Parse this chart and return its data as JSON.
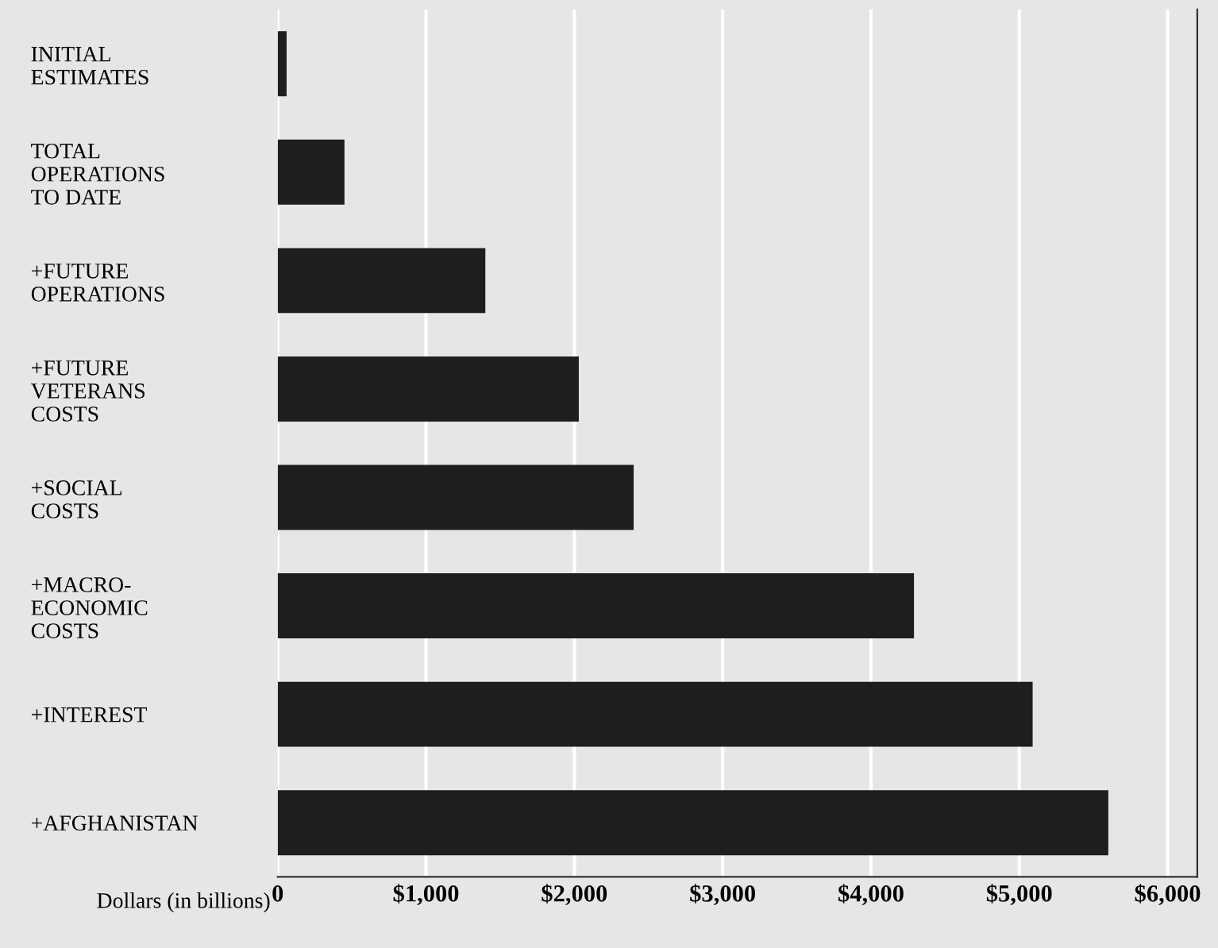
{
  "chart_data": {
    "type": "bar",
    "orientation": "horizontal",
    "xlabel": "Dollars (in billions)",
    "categories": [
      "INITIAL\nESTIMATES",
      "TOTAL\nOPERATIONS\nTO DATE",
      "+FUTURE\nOPERATIONS",
      "+FUTURE\nVETERANS\nCOSTS",
      "+SOCIAL\nCOSTS",
      "+MACRO-\nECONOMIC\nCOSTS",
      "+INTEREST",
      "+AFGHANISTAN"
    ],
    "values": [
      60,
      450,
      1400,
      2030,
      2400,
      4290,
      5090,
      5600
    ],
    "color": "#1e1e1e",
    "xlim": [
      0,
      6200
    ],
    "xticks": [
      0,
      {
        "value": 1000,
        "label": "$1,000"
      },
      {
        "value": 2000,
        "label": "$2,000"
      },
      {
        "value": 3000,
        "label": "$3,000"
      },
      {
        "value": 4000,
        "label": "$4,000"
      },
      {
        "value": 5000,
        "label": "$5,000"
      },
      {
        "value": 6000,
        "label": "$6,000"
      }
    ],
    "grid": "x",
    "legend": false
  }
}
